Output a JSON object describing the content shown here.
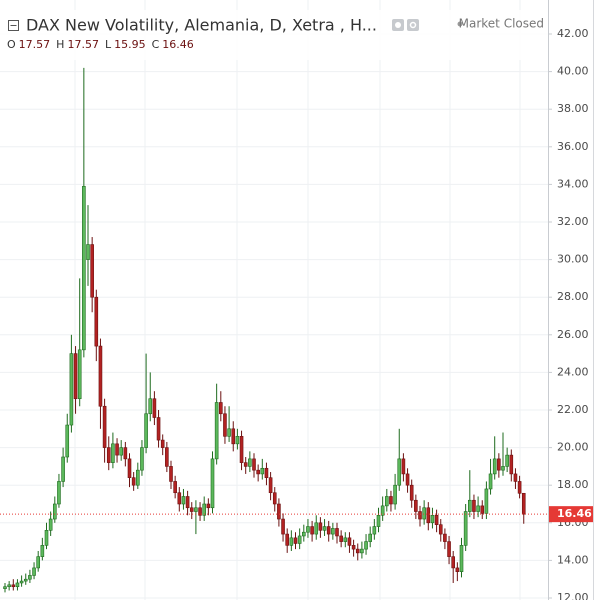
{
  "chart_data": {
    "type": "candlestick",
    "title": "DAX New Volatility, Alemania, D, Xetra , H...",
    "status": "Market Closed",
    "ohlc_labels": [
      "O",
      "H",
      "L",
      "C"
    ],
    "up_color": "#5cb85c",
    "up_border": "#1e6b1e",
    "down_color": "#b22222",
    "down_border": "#6b1010",
    "last_price_color": "#e53935",
    "ylim": [
      12,
      42
    ],
    "yticks": [
      {
        "value": 12,
        "label": "12.00"
      },
      {
        "value": 14,
        "label": "14.00"
      },
      {
        "value": 16,
        "label": "16.00"
      },
      {
        "value": 18,
        "label": "18.00"
      },
      {
        "value": 20,
        "label": "20.00"
      },
      {
        "value": 22,
        "label": "22.00"
      },
      {
        "value": 24,
        "label": "24.00"
      },
      {
        "value": 26,
        "label": "26.00"
      },
      {
        "value": 28,
        "label": "28.00"
      },
      {
        "value": 30,
        "label": "30.00"
      },
      {
        "value": 32,
        "label": "32.00"
      },
      {
        "value": 34,
        "label": "34.00"
      },
      {
        "value": 36,
        "label": "36.00"
      },
      {
        "value": 38,
        "label": "38.00"
      },
      {
        "value": 40,
        "label": "40.00"
      },
      {
        "value": 42,
        "label": "42.00"
      }
    ],
    "grid": true,
    "candles": [
      [
        12.5,
        12.8,
        12.3,
        12.6
      ],
      [
        12.6,
        12.9,
        12.4,
        12.7
      ],
      [
        12.7,
        13.0,
        12.4,
        12.6
      ],
      [
        12.6,
        13.0,
        12.4,
        12.8
      ],
      [
        12.8,
        13.2,
        12.6,
        12.9
      ],
      [
        12.9,
        13.3,
        12.7,
        13.0
      ],
      [
        13.0,
        13.5,
        12.8,
        13.2
      ],
      [
        13.2,
        13.9,
        13.0,
        13.6
      ],
      [
        13.6,
        14.5,
        13.4,
        14.2
      ],
      [
        14.2,
        15.2,
        14.0,
        14.8
      ],
      [
        14.8,
        16.0,
        14.6,
        15.6
      ],
      [
        15.6,
        16.6,
        15.3,
        16.2
      ],
      [
        16.2,
        17.4,
        16.0,
        17.0
      ],
      [
        17.0,
        18.6,
        16.8,
        18.2
      ],
      [
        18.2,
        20.0,
        17.9,
        19.5
      ],
      [
        19.5,
        21.8,
        19.2,
        21.2
      ],
      [
        21.2,
        26.0,
        20.8,
        25.0
      ],
      [
        25.0,
        25.4,
        21.8,
        22.6
      ],
      [
        22.6,
        29.0,
        22.2,
        25.2
      ],
      [
        25.2,
        40.2,
        24.8,
        33.9
      ],
      [
        30.0,
        32.9,
        28.6,
        30.8
      ],
      [
        30.8,
        31.2,
        27.2,
        28.0
      ],
      [
        28.0,
        28.4,
        24.6,
        25.4
      ],
      [
        25.4,
        25.8,
        21.0,
        22.2
      ],
      [
        22.2,
        22.6,
        19.2,
        20.0
      ],
      [
        20.0,
        20.6,
        18.8,
        19.2
      ],
      [
        19.2,
        20.8,
        18.9,
        20.2
      ],
      [
        20.2,
        20.5,
        19.2,
        19.6
      ],
      [
        19.6,
        20.4,
        19.3,
        20.0
      ],
      [
        20.0,
        20.3,
        19.0,
        19.4
      ],
      [
        19.4,
        19.7,
        17.9,
        18.4
      ],
      [
        18.4,
        18.7,
        17.7,
        18.0
      ],
      [
        18.0,
        19.2,
        17.8,
        18.8
      ],
      [
        18.8,
        20.4,
        18.5,
        20.0
      ],
      [
        20.0,
        25.0,
        19.7,
        21.8
      ],
      [
        21.8,
        24.0,
        21.4,
        22.6
      ],
      [
        22.6,
        23.0,
        21.2,
        21.6
      ],
      [
        21.6,
        22.0,
        20.0,
        20.4
      ],
      [
        20.4,
        20.7,
        19.6,
        20.0
      ],
      [
        20.0,
        20.3,
        18.7,
        19.0
      ],
      [
        19.0,
        19.3,
        17.8,
        18.2
      ],
      [
        18.2,
        18.5,
        17.3,
        17.6
      ],
      [
        17.6,
        17.9,
        16.6,
        17.0
      ],
      [
        17.0,
        17.8,
        16.7,
        17.4
      ],
      [
        17.4,
        17.7,
        16.4,
        16.8
      ],
      [
        16.8,
        17.1,
        16.2,
        16.6
      ],
      [
        16.6,
        17.2,
        15.4,
        16.8
      ],
      [
        16.8,
        17.1,
        16.1,
        16.4
      ],
      [
        16.4,
        17.4,
        16.1,
        17.0
      ],
      [
        17.0,
        17.3,
        16.4,
        16.8
      ],
      [
        16.8,
        19.8,
        16.5,
        19.4
      ],
      [
        19.4,
        23.4,
        19.1,
        22.4
      ],
      [
        22.4,
        23.0,
        21.4,
        21.8
      ],
      [
        21.8,
        22.2,
        20.2,
        20.6
      ],
      [
        20.6,
        22.2,
        20.3,
        21.0
      ],
      [
        21.0,
        21.4,
        19.8,
        20.2
      ],
      [
        20.2,
        21.0,
        19.9,
        20.6
      ],
      [
        20.6,
        20.9,
        18.8,
        19.2
      ],
      [
        19.2,
        19.5,
        18.6,
        19.0
      ],
      [
        19.0,
        19.8,
        18.7,
        19.4
      ],
      [
        19.4,
        19.7,
        18.4,
        18.8
      ],
      [
        18.8,
        19.1,
        18.2,
        18.6
      ],
      [
        18.6,
        19.4,
        18.3,
        18.9
      ],
      [
        18.9,
        19.2,
        18.0,
        18.4
      ],
      [
        18.4,
        18.7,
        17.2,
        17.6
      ],
      [
        17.6,
        17.9,
        16.6,
        17.0
      ],
      [
        17.0,
        17.3,
        15.8,
        16.2
      ],
      [
        16.2,
        16.5,
        15.0,
        15.4
      ],
      [
        15.4,
        15.7,
        14.4,
        14.8
      ],
      [
        14.8,
        15.6,
        14.5,
        15.2
      ],
      [
        15.2,
        15.5,
        14.6,
        14.9
      ],
      [
        14.9,
        15.7,
        14.6,
        15.3
      ],
      [
        15.3,
        15.9,
        15.0,
        15.5
      ],
      [
        15.5,
        16.2,
        15.2,
        15.8
      ],
      [
        15.8,
        16.1,
        15.0,
        15.4
      ],
      [
        15.4,
        16.4,
        15.1,
        16.0
      ],
      [
        16.0,
        16.3,
        15.2,
        15.6
      ],
      [
        15.6,
        16.2,
        15.3,
        15.8
      ],
      [
        15.8,
        16.1,
        15.0,
        15.4
      ],
      [
        15.4,
        16.0,
        15.1,
        15.7
      ],
      [
        15.7,
        16.0,
        14.9,
        15.3
      ],
      [
        15.3,
        15.6,
        14.7,
        15.0
      ],
      [
        15.0,
        15.5,
        14.7,
        15.2
      ],
      [
        15.2,
        15.5,
        14.4,
        14.8
      ],
      [
        14.8,
        15.1,
        14.2,
        14.6
      ],
      [
        14.6,
        14.9,
        14.0,
        14.4
      ],
      [
        14.4,
        15.0,
        14.1,
        14.6
      ],
      [
        14.6,
        15.4,
        14.3,
        15.0
      ],
      [
        15.0,
        15.8,
        14.7,
        15.4
      ],
      [
        15.4,
        16.2,
        15.1,
        15.8
      ],
      [
        15.8,
        16.8,
        15.5,
        16.4
      ],
      [
        16.4,
        17.4,
        16.1,
        16.9
      ],
      [
        16.9,
        17.8,
        16.6,
        17.4
      ],
      [
        17.4,
        17.7,
        16.6,
        17.0
      ],
      [
        17.0,
        18.6,
        16.7,
        18.0
      ],
      [
        18.0,
        21.0,
        17.7,
        19.4
      ],
      [
        19.4,
        19.7,
        18.2,
        18.6
      ],
      [
        18.6,
        18.9,
        17.6,
        18.0
      ],
      [
        18.0,
        18.3,
        16.8,
        17.2
      ],
      [
        17.2,
        17.5,
        16.2,
        16.6
      ],
      [
        16.6,
        16.9,
        15.8,
        16.2
      ],
      [
        16.2,
        17.2,
        15.9,
        16.8
      ],
      [
        16.8,
        17.1,
        15.6,
        16.0
      ],
      [
        16.0,
        16.8,
        15.7,
        16.4
      ],
      [
        16.4,
        16.7,
        15.5,
        15.9
      ],
      [
        15.9,
        16.2,
        15.0,
        15.4
      ],
      [
        15.4,
        15.7,
        14.6,
        15.0
      ],
      [
        15.0,
        15.3,
        13.8,
        14.2
      ],
      [
        14.2,
        14.5,
        12.8,
        13.6
      ],
      [
        13.6,
        13.9,
        12.9,
        13.4
      ],
      [
        13.4,
        15.2,
        13.1,
        14.8
      ],
      [
        14.8,
        17.0,
        14.5,
        16.6
      ],
      [
        16.6,
        18.8,
        16.3,
        17.2
      ],
      [
        17.2,
        17.5,
        16.2,
        16.6
      ],
      [
        16.6,
        17.4,
        16.3,
        16.9
      ],
      [
        16.9,
        17.2,
        16.2,
        16.5
      ],
      [
        16.5,
        18.2,
        16.2,
        17.8
      ],
      [
        17.8,
        19.4,
        17.5,
        18.6
      ],
      [
        18.6,
        20.6,
        18.3,
        19.4
      ],
      [
        19.4,
        19.7,
        18.4,
        18.8
      ],
      [
        18.8,
        20.8,
        18.5,
        19.0
      ],
      [
        19.0,
        20.0,
        18.7,
        19.6
      ],
      [
        19.6,
        19.9,
        18.2,
        18.6
      ],
      [
        18.6,
        18.9,
        17.8,
        18.2
      ],
      [
        18.2,
        18.5,
        17.3,
        17.57
      ],
      [
        17.57,
        17.57,
        15.95,
        16.46
      ]
    ]
  }
}
